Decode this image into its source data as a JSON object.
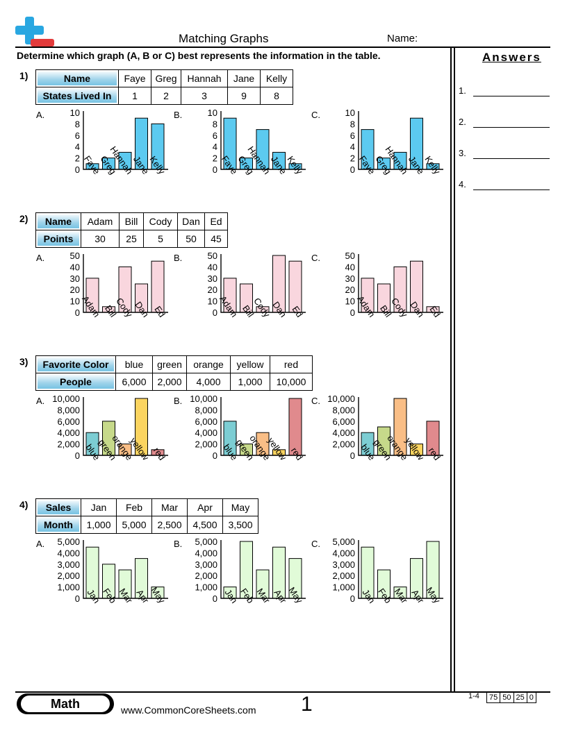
{
  "header": {
    "title": "Matching Graphs",
    "name_label": "Name:",
    "instructions": "Determine which graph (A, B or C) best represents the information in the table."
  },
  "answers": {
    "title": "Answers",
    "items": [
      "1.",
      "2.",
      "3.",
      "4."
    ]
  },
  "colors": {
    "q1": "#5ccaf0",
    "q2": "#f9d6de",
    "q3": {
      "blue": "#7ccdd3",
      "green": "#c6d98a",
      "orange": "#f9be86",
      "yellow": "#fbd460",
      "red": "#e08a8d"
    },
    "q4": "#e1fbd8",
    "header_cell": "#9fd3ea"
  },
  "questions": [
    {
      "number": "1)",
      "table": {
        "row1_header": "Name",
        "row2_header": "States Lived In",
        "names": [
          "Faye",
          "Greg",
          "Hannah",
          "Jane",
          "Kelly"
        ],
        "values": [
          "1",
          "2",
          "3",
          "9",
          "8"
        ]
      },
      "options": [
        "A.",
        "B.",
        "C."
      ]
    },
    {
      "number": "2)",
      "table": {
        "row1_header": "Name",
        "row2_header": "Points",
        "names": [
          "Adam",
          "Bill",
          "Cody",
          "Dan",
          "Ed"
        ],
        "values": [
          "30",
          "25",
          "5",
          "50",
          "45"
        ]
      },
      "options": [
        "A.",
        "B.",
        "C."
      ]
    },
    {
      "number": "3)",
      "table": {
        "row1_header": "Favorite Color",
        "row2_header": "People",
        "names": [
          "blue",
          "green",
          "orange",
          "yellow",
          "red"
        ],
        "values": [
          "6,000",
          "2,000",
          "4,000",
          "1,000",
          "10,000"
        ]
      },
      "options": [
        "A.",
        "B.",
        "C."
      ]
    },
    {
      "number": "4)",
      "table": {
        "row1_header": "Sales",
        "row2_header": "Month",
        "names": [
          "Jan",
          "Feb",
          "Mar",
          "Apr",
          "May"
        ],
        "values": [
          "1,000",
          "5,000",
          "2,500",
          "4,500",
          "3,500"
        ]
      },
      "options": [
        "A.",
        "B.",
        "C."
      ]
    }
  ],
  "chart_data": [
    {
      "type": "bar",
      "question": "1)",
      "option": "A.",
      "categories": [
        "Faye",
        "Greg",
        "Hannah",
        "Jane",
        "Kelly"
      ],
      "values": [
        1,
        2,
        3,
        9,
        8
      ],
      "ylim": [
        0,
        10
      ],
      "yticks": [
        "0",
        "2",
        "4",
        "6",
        "8",
        "10"
      ]
    },
    {
      "type": "bar",
      "question": "1)",
      "option": "B.",
      "categories": [
        "Faye",
        "Greg",
        "Hannah",
        "Jane",
        "Kelly"
      ],
      "values": [
        9,
        2,
        7,
        3,
        1
      ],
      "ylim": [
        0,
        10
      ],
      "yticks": [
        "0",
        "2",
        "4",
        "6",
        "8",
        "10"
      ]
    },
    {
      "type": "bar",
      "question": "1)",
      "option": "C.",
      "categories": [
        "Faye",
        "Greg",
        "Hannah",
        "Jane",
        "Kelly"
      ],
      "values": [
        7,
        2,
        3,
        9,
        1
      ],
      "ylim": [
        0,
        10
      ],
      "yticks": [
        "0",
        "2",
        "4",
        "6",
        "8",
        "10"
      ]
    },
    {
      "type": "bar",
      "question": "2)",
      "option": "A.",
      "categories": [
        "Adam",
        "Bill",
        "Cody",
        "Dan",
        "Ed"
      ],
      "values": [
        30,
        5,
        40,
        25,
        45
      ],
      "ylim": [
        0,
        50
      ],
      "yticks": [
        "0",
        "10",
        "20",
        "30",
        "40",
        "50"
      ]
    },
    {
      "type": "bar",
      "question": "2)",
      "option": "B.",
      "categories": [
        "Adam",
        "Bill",
        "Cody",
        "Dan",
        "Ed"
      ],
      "values": [
        30,
        25,
        5,
        50,
        45
      ],
      "ylim": [
        0,
        50
      ],
      "yticks": [
        "0",
        "10",
        "20",
        "30",
        "40",
        "50"
      ]
    },
    {
      "type": "bar",
      "question": "2)",
      "option": "C.",
      "categories": [
        "Adam",
        "Bill",
        "Cody",
        "Dan",
        "Ed"
      ],
      "values": [
        30,
        25,
        40,
        45,
        5
      ],
      "ylim": [
        0,
        50
      ],
      "yticks": [
        "0",
        "10",
        "20",
        "30",
        "40",
        "50"
      ]
    },
    {
      "type": "bar",
      "question": "3)",
      "option": "A.",
      "categories": [
        "blue",
        "green",
        "orange",
        "yellow",
        "red"
      ],
      "values": [
        4000,
        6000,
        2000,
        10000,
        1000
      ],
      "ylim": [
        0,
        10000
      ],
      "yticks": [
        "0",
        "2,000",
        "4,000",
        "6,000",
        "8,000",
        "10,000"
      ]
    },
    {
      "type": "bar",
      "question": "3)",
      "option": "B.",
      "categories": [
        "blue",
        "green",
        "orange",
        "yellow",
        "red"
      ],
      "values": [
        6000,
        2000,
        4000,
        1000,
        10000
      ],
      "ylim": [
        0,
        10000
      ],
      "yticks": [
        "0",
        "2,000",
        "4,000",
        "6,000",
        "8,000",
        "10,000"
      ]
    },
    {
      "type": "bar",
      "question": "3)",
      "option": "C.",
      "categories": [
        "blue",
        "green",
        "orange",
        "yellow",
        "red"
      ],
      "values": [
        4000,
        5000,
        10000,
        2000,
        6000
      ],
      "ylim": [
        0,
        10000
      ],
      "yticks": [
        "0",
        "2,000",
        "4,000",
        "6,000",
        "8,000",
        "10,000"
      ]
    },
    {
      "type": "bar",
      "question": "4)",
      "option": "A.",
      "categories": [
        "Jan",
        "Feb",
        "Mar",
        "Apr",
        "May"
      ],
      "values": [
        4500,
        3000,
        2500,
        3500,
        1000
      ],
      "ylim": [
        0,
        5000
      ],
      "yticks": [
        "0",
        "1,000",
        "2,000",
        "3,000",
        "4,000",
        "5,000"
      ]
    },
    {
      "type": "bar",
      "question": "4)",
      "option": "B.",
      "categories": [
        "Jan",
        "Feb",
        "Mar",
        "Apr",
        "May"
      ],
      "values": [
        1000,
        5000,
        2500,
        4500,
        3500
      ],
      "ylim": [
        0,
        5000
      ],
      "yticks": [
        "0",
        "1,000",
        "2,000",
        "3,000",
        "4,000",
        "5,000"
      ]
    },
    {
      "type": "bar",
      "question": "4)",
      "option": "C.",
      "categories": [
        "Jan",
        "Feb",
        "Mar",
        "Apr",
        "May"
      ],
      "values": [
        4500,
        2500,
        1000,
        3500,
        5000
      ],
      "ylim": [
        0,
        5000
      ],
      "yticks": [
        "0",
        "1,000",
        "2,000",
        "3,000",
        "4,000",
        "5,000"
      ]
    }
  ],
  "footer": {
    "badge": "Math",
    "url": "www.CommonCoreSheets.com",
    "page": "1",
    "range": "1-4",
    "scores": [
      "75",
      "50",
      "25",
      "0"
    ]
  }
}
